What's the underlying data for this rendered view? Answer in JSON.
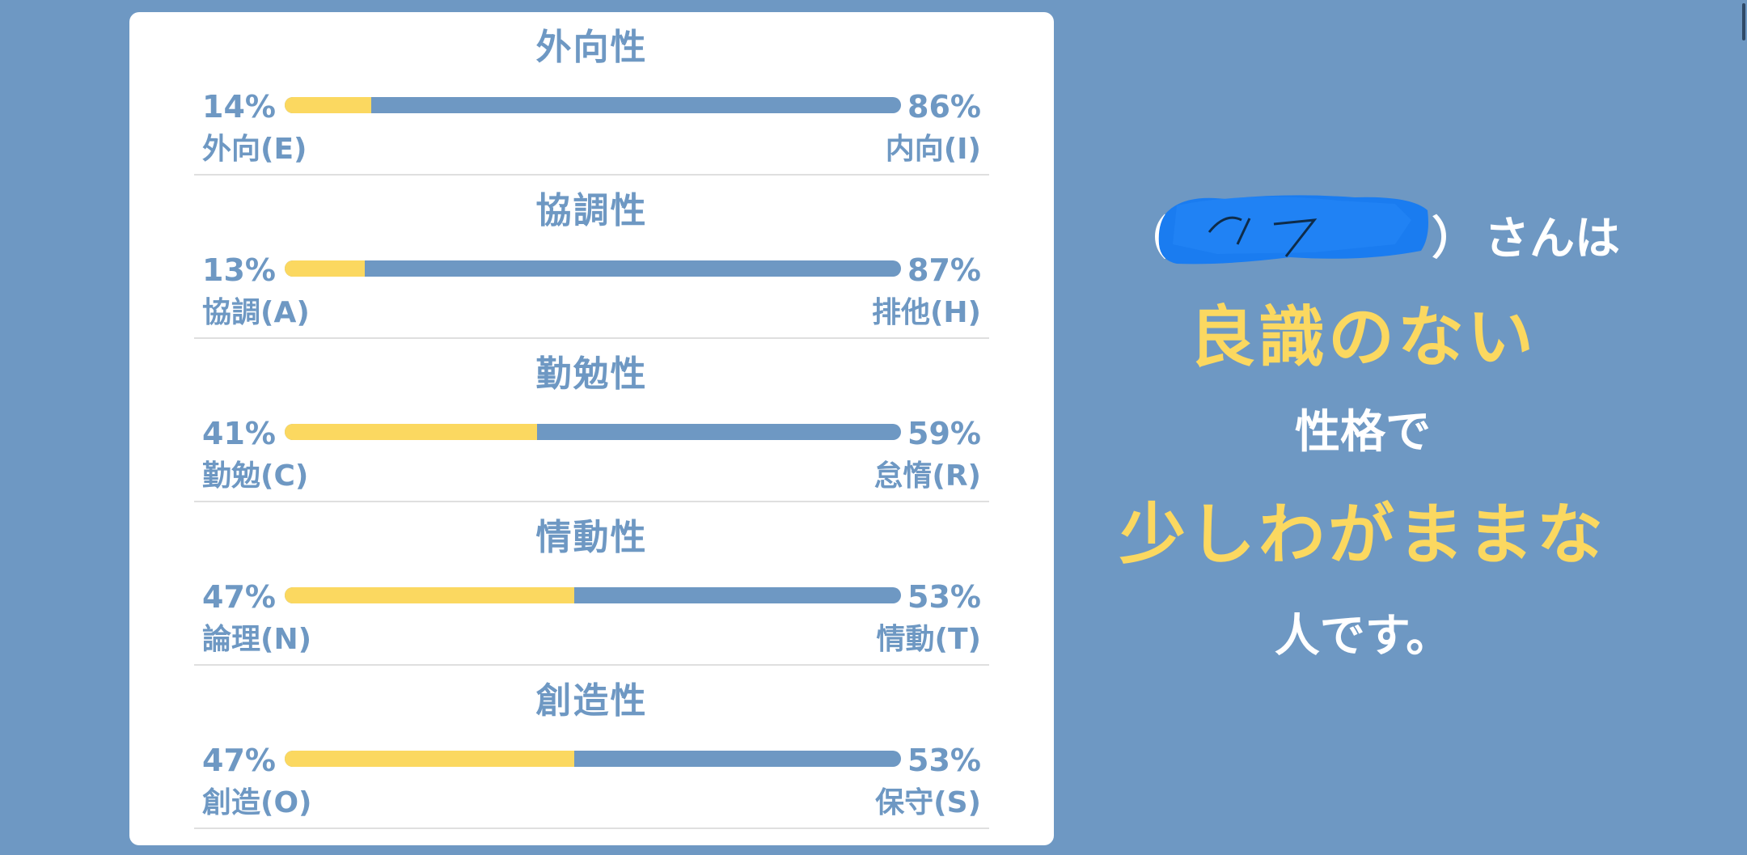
{
  "traits": [
    {
      "title": "外向性",
      "left_pct_label": "14%",
      "right_pct_label": "86%",
      "left_pct": 14,
      "left_label": "外向(E)",
      "right_label": "内向(I)"
    },
    {
      "title": "協調性",
      "left_pct_label": "13%",
      "right_pct_label": "87%",
      "left_pct": 13,
      "left_label": "協調(A)",
      "right_label": "排他(H)"
    },
    {
      "title": "勤勉性",
      "left_pct_label": "41%",
      "right_pct_label": "59%",
      "left_pct": 41,
      "left_label": "勤勉(C)",
      "right_label": "怠惰(R)"
    },
    {
      "title": "情動性",
      "left_pct_label": "47%",
      "right_pct_label": "53%",
      "left_pct": 47,
      "left_label": "論理(N)",
      "right_label": "情動(T)"
    },
    {
      "title": "創造性",
      "left_pct_label": "47%",
      "right_pct_label": "53%",
      "left_pct": 47,
      "left_label": "創造(O)",
      "right_label": "保守(S)"
    }
  ],
  "result": {
    "paren_open": "（",
    "paren_close": "）",
    "san_wa": "さんは",
    "line1": "良識のない",
    "line2": "性格で",
    "line3": "少しわがままな",
    "line4": "人です。"
  },
  "colors": {
    "background": "#6e98c3",
    "accent": "#fbd860",
    "redaction": "#1a7cf0"
  }
}
